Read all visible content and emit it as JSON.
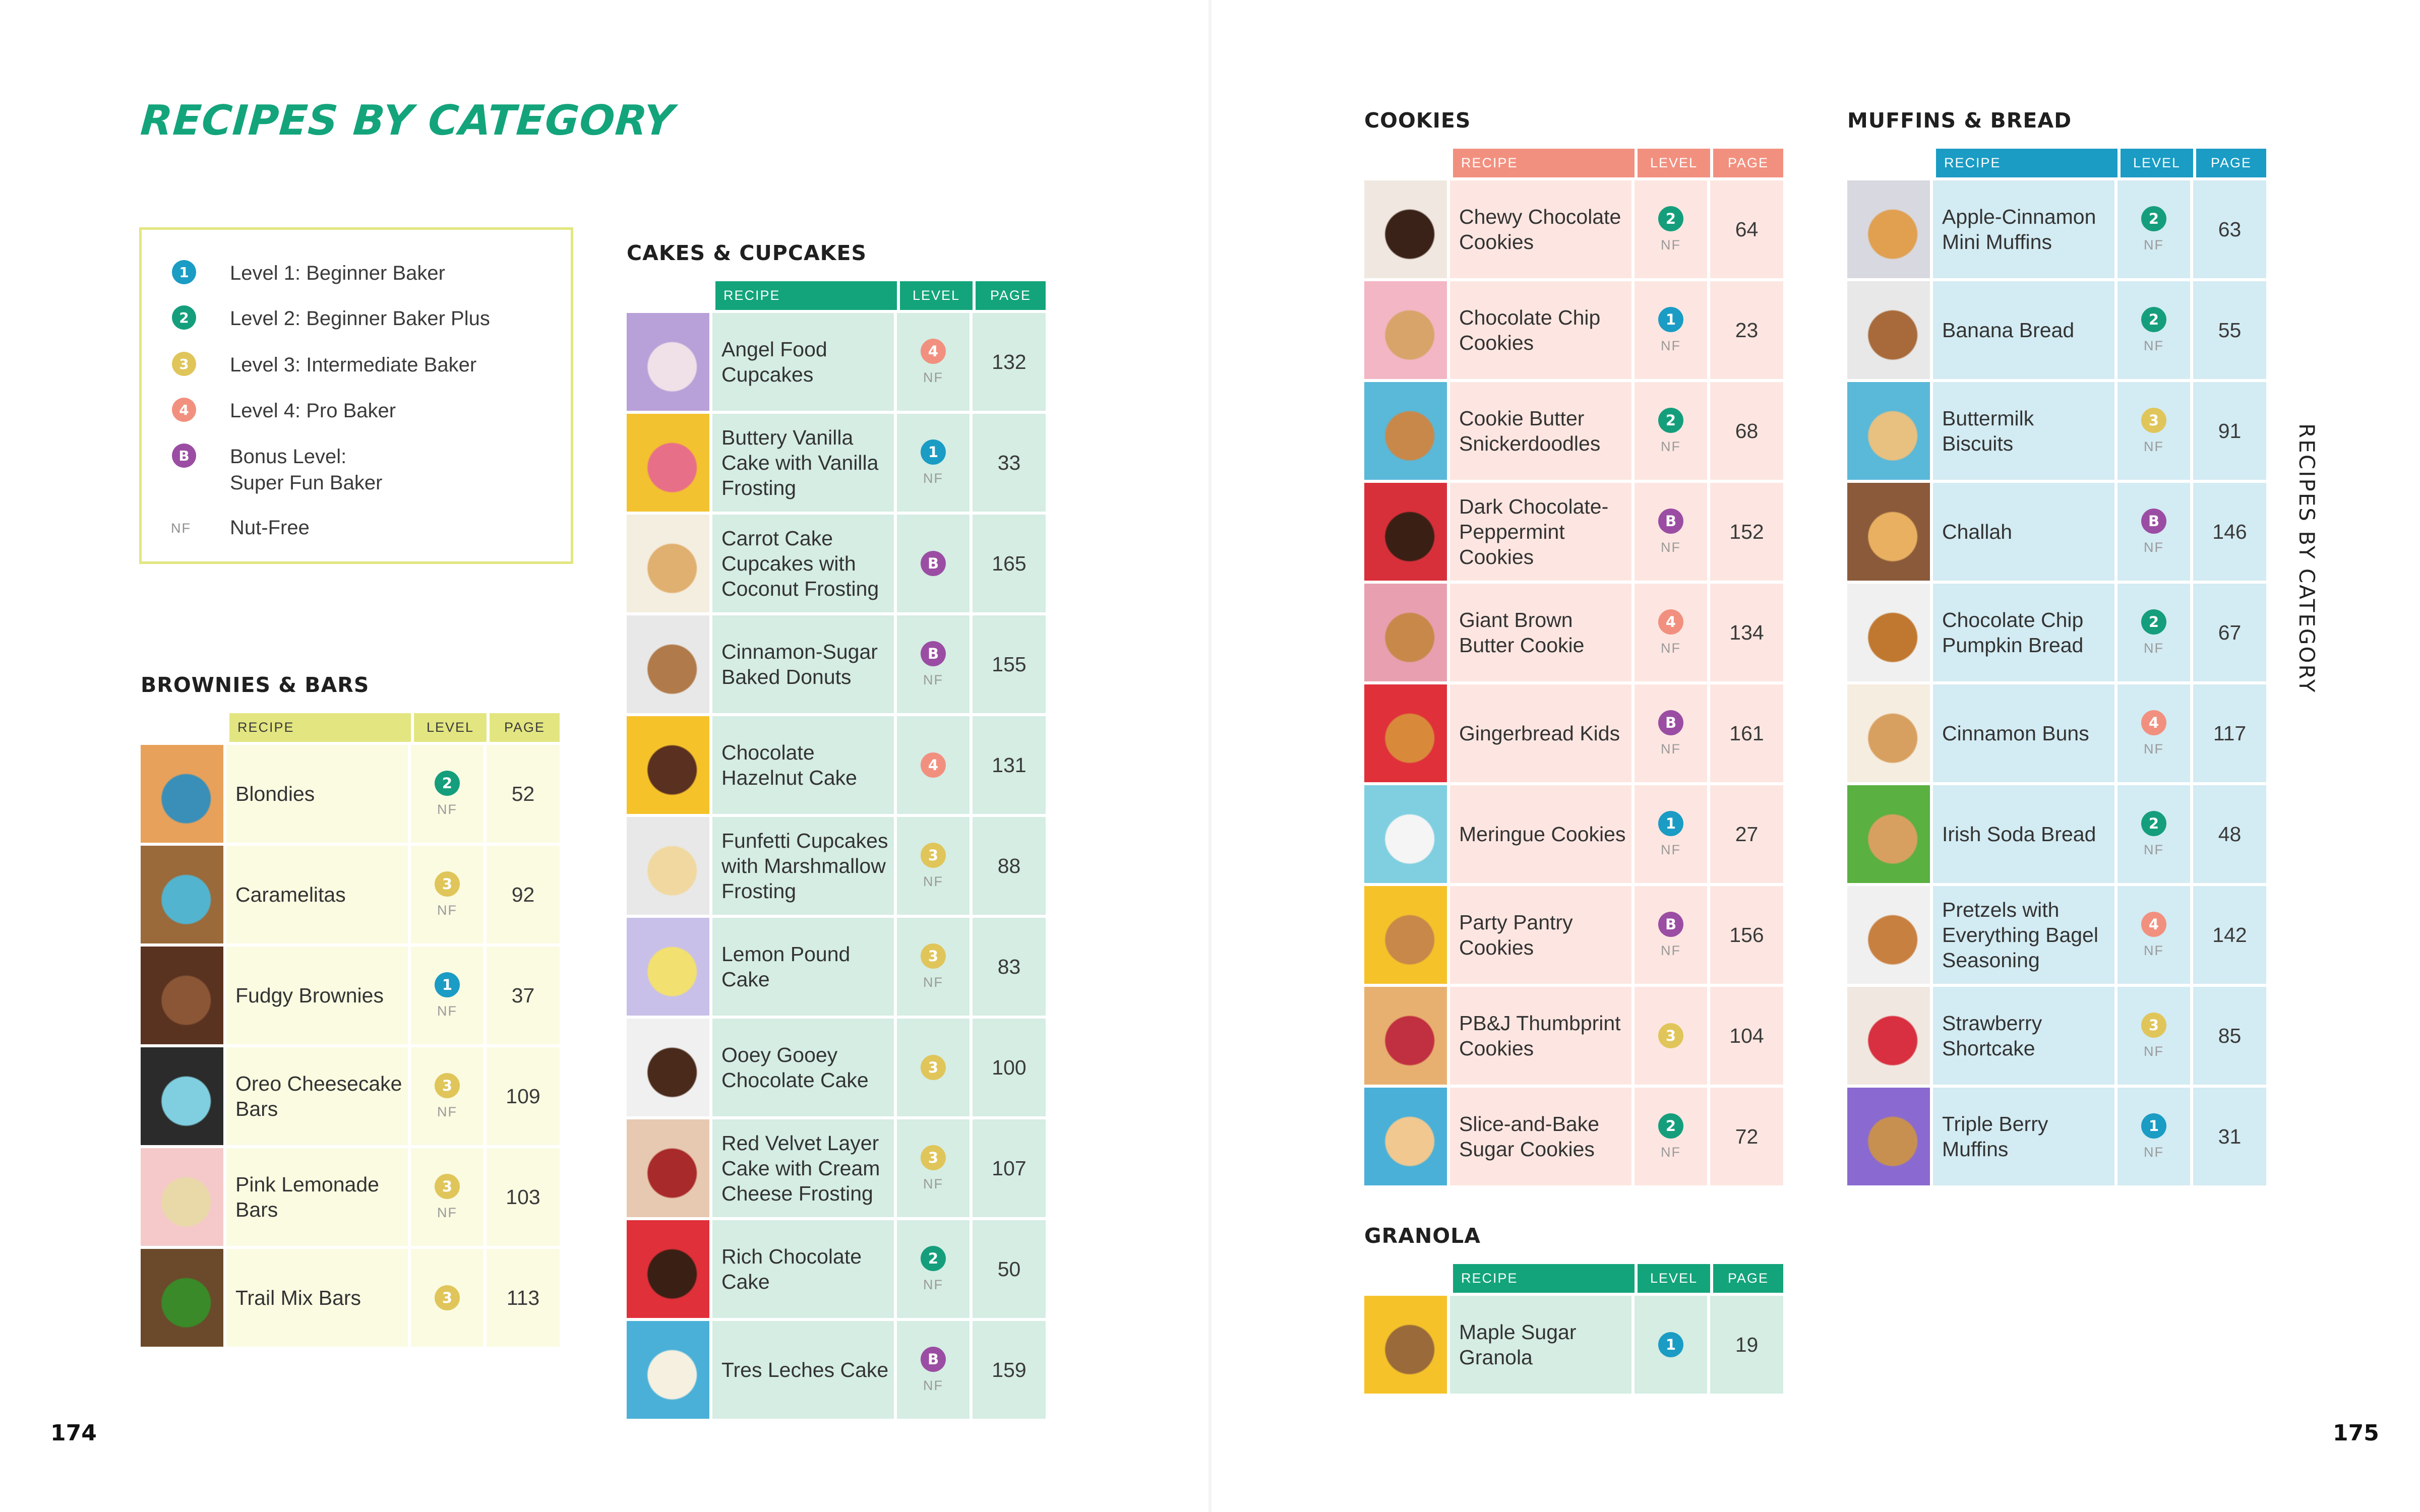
{
  "page_title": "RECIPES BY CATEGORY",
  "side_title": "RECIPES BY CATEGORY",
  "page_numbers": {
    "left": "174",
    "right": "175"
  },
  "headers": {
    "recipe": "RECIPE",
    "level": "LEVEL",
    "page": "PAGE"
  },
  "nf_label": "NF",
  "levels": {
    "1": {
      "glyph": "1",
      "color": "#1a9cc4"
    },
    "2": {
      "glyph": "2",
      "color": "#159e7c"
    },
    "3": {
      "glyph": "3",
      "color": "#e0c55a"
    },
    "4": {
      "glyph": "4",
      "color": "#f2907f"
    },
    "B": {
      "glyph": "B",
      "color": "#9b4da3"
    }
  },
  "legend": [
    {
      "level": "1",
      "text": "Level 1: Beginner Baker"
    },
    {
      "level": "2",
      "text": "Level 2: Beginner Baker Plus"
    },
    {
      "level": "3",
      "text": "Level 3: Intermediate Baker"
    },
    {
      "level": "4",
      "text": "Level 4: Pro Baker"
    },
    {
      "level": "B",
      "text": "Bonus Level:",
      "text2": "Super Fun Baker"
    },
    {
      "level": "NF",
      "text": "Nut-Free"
    }
  ],
  "sections": [
    {
      "title": "BROWNIES & BARS",
      "header_color": "#e3e680",
      "row_color": "#fafbe1",
      "rows": [
        {
          "recipe": [
            "Blondies"
          ],
          "level": "2",
          "nf": true,
          "page": "52",
          "thumb": [
            "#e8a15a",
            "#3a8fb8"
          ]
        },
        {
          "recipe": [
            "Caramelitas"
          ],
          "level": "3",
          "nf": true,
          "page": "92",
          "thumb": [
            "#9a6a3a",
            "#52b4cf"
          ]
        },
        {
          "recipe": [
            "Fudgy Brownies"
          ],
          "level": "1",
          "nf": true,
          "page": "37",
          "thumb": [
            "#5a3220",
            "#8a5636"
          ]
        },
        {
          "recipe": [
            "Oreo Cheesecake",
            "Bars"
          ],
          "level": "3",
          "nf": true,
          "page": "109",
          "thumb": [
            "#2b2b2b",
            "#7fcfe0"
          ]
        },
        {
          "recipe": [
            "Pink Lemonade",
            "Bars"
          ],
          "level": "3",
          "nf": true,
          "page": "103",
          "thumb": [
            "#f5c9c9",
            "#e9d9a8"
          ]
        },
        {
          "recipe": [
            "Trail Mix Bars"
          ],
          "level": "3",
          "nf": false,
          "page": "113",
          "thumb": [
            "#6a4a2a",
            "#3a8a2a"
          ]
        }
      ]
    },
    {
      "title": "CAKES & CUPCAKES",
      "header_color": "#13a47b",
      "row_color": "#d5ede3",
      "rows": [
        {
          "recipe": [
            "Angel Food",
            "Cupcakes"
          ],
          "level": "4",
          "nf": true,
          "page": "132",
          "thumb": [
            "#b8a0d8",
            "#f0e0e8"
          ]
        },
        {
          "recipe": [
            "Buttery Vanilla",
            "Cake with Vanilla",
            "Frosting"
          ],
          "level": "1",
          "nf": true,
          "page": "33",
          "thumb": [
            "#f2c230",
            "#e86f88"
          ]
        },
        {
          "recipe": [
            "Carrot Cake",
            "Cupcakes with",
            "Coconut Frosting"
          ],
          "level": "B",
          "nf": false,
          "page": "165",
          "thumb": [
            "#f4eee0",
            "#e0b070"
          ]
        },
        {
          "recipe": [
            "Cinnamon-Sugar",
            "Baked Donuts"
          ],
          "level": "B",
          "nf": true,
          "page": "155",
          "thumb": [
            "#e8e8e8",
            "#b07a4a"
          ]
        },
        {
          "recipe": [
            "Chocolate",
            "Hazelnut Cake"
          ],
          "level": "4",
          "nf": false,
          "page": "131",
          "thumb": [
            "#f5c22a",
            "#5a3020"
          ]
        },
        {
          "recipe": [
            "Funfetti Cupcakes",
            "with Marshmallow",
            "Frosting"
          ],
          "level": "3",
          "nf": true,
          "page": "88",
          "thumb": [
            "#e8e8e8",
            "#f0d8a0"
          ]
        },
        {
          "recipe": [
            "Lemon Pound",
            "Cake"
          ],
          "level": "3",
          "nf": true,
          "page": "83",
          "thumb": [
            "#c8c0e8",
            "#f2e070"
          ]
        },
        {
          "recipe": [
            "Ooey Gooey",
            "Chocolate Cake"
          ],
          "level": "3",
          "nf": false,
          "page": "100",
          "thumb": [
            "#f0f0f0",
            "#4a2a1a"
          ]
        },
        {
          "recipe": [
            "Red Velvet Layer",
            "Cake with Cream",
            "Cheese Frosting"
          ],
          "level": "3",
          "nf": true,
          "page": "107",
          "thumb": [
            "#e7c8b0",
            "#a82a2a"
          ]
        },
        {
          "recipe": [
            "Rich Chocolate",
            "Cake"
          ],
          "level": "2",
          "nf": true,
          "page": "50",
          "thumb": [
            "#e0303a",
            "#3a1f14"
          ]
        },
        {
          "recipe": [
            "Tres Leches Cake"
          ],
          "level": "B",
          "nf": true,
          "page": "159",
          "thumb": [
            "#4ab0d8",
            "#f5f0e0"
          ]
        }
      ]
    },
    {
      "title": "COOKIES",
      "header_color": "#f2907f",
      "row_color": "#fde6e1",
      "rows": [
        {
          "recipe": [
            "Chewy Chocolate",
            "Cookies"
          ],
          "level": "2",
          "nf": true,
          "page": "64",
          "thumb": [
            "#f0e8e0",
            "#3a2218"
          ]
        },
        {
          "recipe": [
            "Chocolate Chip",
            "Cookies"
          ],
          "level": "1",
          "nf": true,
          "page": "23",
          "thumb": [
            "#f3b6c4",
            "#d8a46a"
          ]
        },
        {
          "recipe": [
            "Cookie Butter",
            "Snickerdoodles"
          ],
          "level": "2",
          "nf": true,
          "page": "68",
          "thumb": [
            "#5ab8d8",
            "#c8884a"
          ]
        },
        {
          "recipe": [
            "Dark Chocolate-",
            "Peppermint",
            "Cookies"
          ],
          "level": "B",
          "nf": true,
          "page": "152",
          "thumb": [
            "#d8303a",
            "#3a1f14"
          ]
        },
        {
          "recipe": [
            "Giant Brown",
            "Butter Cookie"
          ],
          "level": "4",
          "nf": true,
          "page": "134",
          "thumb": [
            "#e8a0b0",
            "#c8884a"
          ]
        },
        {
          "recipe": [
            "Gingerbread Kids"
          ],
          "level": "B",
          "nf": true,
          "page": "161",
          "thumb": [
            "#e0303a",
            "#d88a3a"
          ]
        },
        {
          "recipe": [
            "Meringue Cookies"
          ],
          "level": "1",
          "nf": true,
          "page": "27",
          "thumb": [
            "#7fcfe0",
            "#f5f5f5"
          ]
        },
        {
          "recipe": [
            "Party Pantry",
            "Cookies"
          ],
          "level": "B",
          "nf": true,
          "page": "156",
          "thumb": [
            "#f5c22a",
            "#c8884a"
          ]
        },
        {
          "recipe": [
            "PB&J Thumbprint",
            "Cookies"
          ],
          "level": "3",
          "nf": false,
          "page": "104",
          "thumb": [
            "#e8b070",
            "#c03040"
          ]
        },
        {
          "recipe": [
            "Slice-and-Bake",
            "Sugar Cookies"
          ],
          "level": "2",
          "nf": true,
          "page": "72",
          "thumb": [
            "#4ab0d8",
            "#f0c890"
          ]
        }
      ]
    },
    {
      "title": "GRANOLA",
      "header_color": "#13a47b",
      "row_color": "#d5ede3",
      "rows": [
        {
          "recipe": [
            "Maple Sugar",
            "Granola"
          ],
          "level": "1",
          "nf": false,
          "page": "19",
          "thumb": [
            "#f5c22a",
            "#9a6a3a"
          ]
        }
      ]
    },
    {
      "title": "MUFFINS & BREAD",
      "header_color": "#1a9cc4",
      "row_color": "#d3ebf2",
      "rows": [
        {
          "recipe": [
            "Apple-Cinnamon",
            "Mini Muffins"
          ],
          "level": "2",
          "nf": true,
          "page": "63",
          "thumb": [
            "#d8d8e0",
            "#e0a050"
          ]
        },
        {
          "recipe": [
            "Banana Bread"
          ],
          "level": "2",
          "nf": true,
          "page": "55",
          "thumb": [
            "#e8e8e8",
            "#a86a3a"
          ]
        },
        {
          "recipe": [
            "Buttermilk",
            "Biscuits"
          ],
          "level": "3",
          "nf": true,
          "page": "91",
          "thumb": [
            "#5ab8d8",
            "#e8c080"
          ]
        },
        {
          "recipe": [
            "Challah"
          ],
          "level": "B",
          "nf": true,
          "page": "146",
          "thumb": [
            "#8a5a3a",
            "#e8b060"
          ]
        },
        {
          "recipe": [
            "Chocolate Chip",
            "Pumpkin Bread"
          ],
          "level": "2",
          "nf": true,
          "page": "67",
          "thumb": [
            "#f0f0f0",
            "#c07830"
          ]
        },
        {
          "recipe": [
            "Cinnamon Buns"
          ],
          "level": "4",
          "nf": true,
          "page": "117",
          "thumb": [
            "#f5ede0",
            "#d8a060"
          ]
        },
        {
          "recipe": [
            "Irish Soda Bread"
          ],
          "level": "2",
          "nf": true,
          "page": "48",
          "thumb": [
            "#5ab040",
            "#d8a060"
          ]
        },
        {
          "recipe": [
            "Pretzels with",
            "Everything Bagel",
            "Seasoning"
          ],
          "level": "4",
          "nf": true,
          "page": "142",
          "thumb": [
            "#f0f0f0",
            "#c88040"
          ]
        },
        {
          "recipe": [
            "Strawberry",
            "Shortcake"
          ],
          "level": "3",
          "nf": true,
          "page": "85",
          "thumb": [
            "#f0e8e0",
            "#d83040"
          ]
        },
        {
          "recipe": [
            "Triple Berry",
            "Muffins"
          ],
          "level": "1",
          "nf": true,
          "page": "31",
          "thumb": [
            "#8a6ad0",
            "#c89050"
          ]
        }
      ]
    }
  ]
}
